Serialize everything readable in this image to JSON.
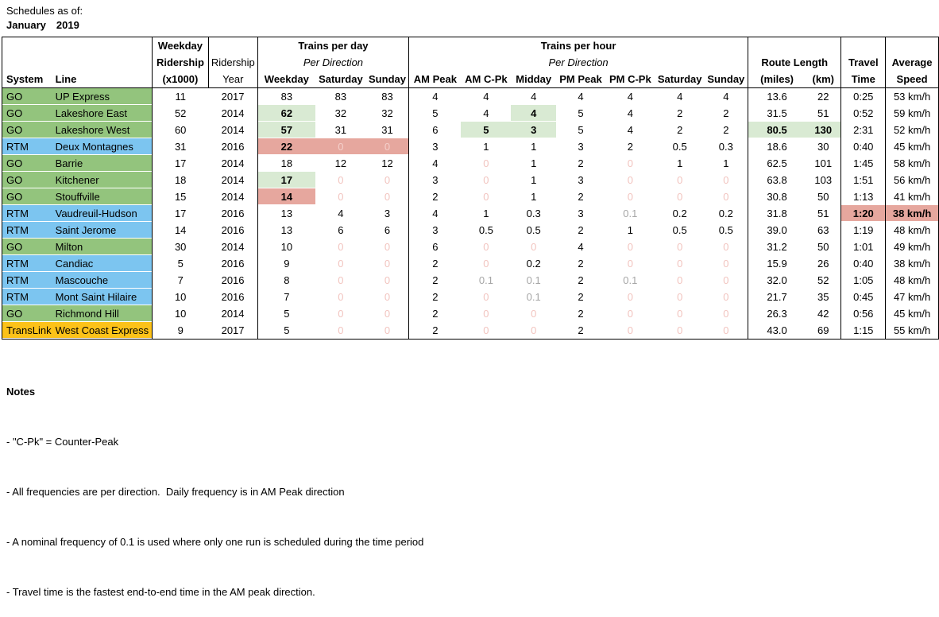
{
  "title": "Schedules as of:",
  "date": {
    "month": "January",
    "year": "2019"
  },
  "colors": {
    "go_green": "#93c47d",
    "rtm_blue": "#7cc5f0",
    "translink_yellow": "#fcc219",
    "highlight_green": "#d9ead3",
    "highlight_red": "#e6a79e",
    "zero_pink": "#f2c4bf",
    "zero_on_red": "#f4cfca",
    "nominal_gray": "#a6a6a6"
  },
  "table": {
    "head": {
      "weekday_ridership_l1": "Weekday",
      "weekday_ridership_l2": "Ridership",
      "ridership_year_l1": "Ridership",
      "trains_per_day": "Trains per day",
      "trains_per_hour": "Trains per hour",
      "per_direction": "Per Direction",
      "route_length": "Route Length",
      "travel": "Travel",
      "average": "Average"
    },
    "columns": [
      "System",
      "Line",
      "(x1000)",
      "Year",
      "Weekday",
      "Saturday",
      "Sunday",
      "AM Peak",
      "AM C-Pk",
      "Midday",
      "PM Peak",
      "PM C-Pk",
      "Saturday",
      "Sunday",
      "(miles)",
      "(km)",
      "Time",
      "Speed"
    ],
    "rows": [
      {
        "system": "GO",
        "line": "UP Express",
        "agency": "go",
        "cells": [
          "11",
          "2017",
          "83",
          "83",
          "83",
          "4",
          "4",
          "4",
          "4",
          "4",
          "4",
          "4",
          "13.6",
          "22",
          "0:25",
          "53 km/h"
        ]
      },
      {
        "system": "GO",
        "line": "Lakeshore East",
        "agency": "go",
        "cells": [
          "52",
          "2014",
          {
            "v": "62",
            "c": "b hl-g"
          },
          "32",
          "32",
          "5",
          "4",
          {
            "v": "4",
            "c": "b hl-g"
          },
          "5",
          "4",
          "2",
          "2",
          "31.5",
          "51",
          "0:52",
          "59 km/h"
        ]
      },
      {
        "system": "GO",
        "line": "Lakeshore West",
        "agency": "go",
        "cells": [
          "60",
          "2014",
          {
            "v": "57",
            "c": "b hl-g"
          },
          "31",
          "31",
          "6",
          {
            "v": "5",
            "c": "b hl-g"
          },
          {
            "v": "3",
            "c": "b hl-g"
          },
          "5",
          "4",
          "2",
          "2",
          {
            "v": "80.5",
            "c": "b hl-g"
          },
          {
            "v": "130",
            "c": "b hl-g"
          },
          "2:31",
          "52 km/h"
        ]
      },
      {
        "system": "RTM",
        "line": "Deux Montagnes",
        "agency": "rtm",
        "cells": [
          "31",
          "2016",
          {
            "v": "22",
            "c": "b hl-r"
          },
          {
            "v": "0",
            "c": "zr hl-r"
          },
          {
            "v": "0",
            "c": "zr hl-r"
          },
          "3",
          "1",
          "1",
          "3",
          "2",
          "0.5",
          "0.3",
          "18.6",
          "30",
          "0:40",
          "45 km/h"
        ]
      },
      {
        "system": "GO",
        "line": "Barrie",
        "agency": "go",
        "cells": [
          "17",
          "2014",
          "18",
          "12",
          "12",
          "4",
          {
            "v": "0",
            "c": "z"
          },
          "1",
          "2",
          {
            "v": "0",
            "c": "z"
          },
          "1",
          "1",
          "62.5",
          "101",
          "1:45",
          "58 km/h"
        ]
      },
      {
        "system": "GO",
        "line": "Kitchener",
        "agency": "go",
        "cells": [
          "18",
          "2014",
          {
            "v": "17",
            "c": "b hl-g"
          },
          {
            "v": "0",
            "c": "z"
          },
          {
            "v": "0",
            "c": "z"
          },
          "3",
          {
            "v": "0",
            "c": "z"
          },
          "1",
          "3",
          {
            "v": "0",
            "c": "z"
          },
          {
            "v": "0",
            "c": "z"
          },
          {
            "v": "0",
            "c": "z"
          },
          "63.8",
          "103",
          "1:51",
          "56 km/h"
        ]
      },
      {
        "system": "GO",
        "line": "Stouffville",
        "agency": "go",
        "cells": [
          "15",
          "2014",
          {
            "v": "14",
            "c": "b hl-r"
          },
          {
            "v": "0",
            "c": "z"
          },
          {
            "v": "0",
            "c": "z"
          },
          "2",
          {
            "v": "0",
            "c": "z"
          },
          "1",
          "2",
          {
            "v": "0",
            "c": "z"
          },
          {
            "v": "0",
            "c": "z"
          },
          {
            "v": "0",
            "c": "z"
          },
          "30.8",
          "50",
          "1:13",
          "41 km/h"
        ]
      },
      {
        "system": "RTM",
        "line": "Vaudreuil-Hudson",
        "agency": "rtm",
        "cells": [
          "17",
          "2016",
          "13",
          "4",
          "3",
          "4",
          "1",
          "0.3",
          "3",
          {
            "v": "0.1",
            "c": "gy"
          },
          "0.2",
          "0.2",
          "31.8",
          "51",
          {
            "v": "1:20",
            "c": "b hl-r"
          },
          {
            "v": "38 km/h",
            "c": "b hl-r"
          }
        ]
      },
      {
        "system": "RTM",
        "line": "Saint Jerome",
        "agency": "rtm",
        "cells": [
          "14",
          "2016",
          "13",
          "6",
          "6",
          "3",
          "0.5",
          "0.5",
          "2",
          "1",
          "0.5",
          "0.5",
          "39.0",
          "63",
          "1:19",
          "48 km/h"
        ]
      },
      {
        "system": "GO",
        "line": "Milton",
        "agency": "go",
        "cells": [
          "30",
          "2014",
          "10",
          {
            "v": "0",
            "c": "z"
          },
          {
            "v": "0",
            "c": "z"
          },
          "6",
          {
            "v": "0",
            "c": "z"
          },
          {
            "v": "0",
            "c": "z"
          },
          "4",
          {
            "v": "0",
            "c": "z"
          },
          {
            "v": "0",
            "c": "z"
          },
          {
            "v": "0",
            "c": "z"
          },
          "31.2",
          "50",
          "1:01",
          "49 km/h"
        ]
      },
      {
        "system": "RTM",
        "line": "Candiac",
        "agency": "rtm",
        "cells": [
          "5",
          "2016",
          "9",
          {
            "v": "0",
            "c": "z"
          },
          {
            "v": "0",
            "c": "z"
          },
          "2",
          {
            "v": "0",
            "c": "z"
          },
          "0.2",
          "2",
          {
            "v": "0",
            "c": "z"
          },
          {
            "v": "0",
            "c": "z"
          },
          {
            "v": "0",
            "c": "z"
          },
          "15.9",
          "26",
          "0:40",
          "38 km/h"
        ]
      },
      {
        "system": "RTM",
        "line": "Mascouche",
        "agency": "rtm",
        "cells": [
          "7",
          "2016",
          "8",
          {
            "v": "0",
            "c": "z"
          },
          {
            "v": "0",
            "c": "z"
          },
          "2",
          {
            "v": "0.1",
            "c": "gy"
          },
          {
            "v": "0.1",
            "c": "gy"
          },
          "2",
          {
            "v": "0.1",
            "c": "gy"
          },
          {
            "v": "0",
            "c": "z"
          },
          {
            "v": "0",
            "c": "z"
          },
          "32.0",
          "52",
          "1:05",
          "48 km/h"
        ]
      },
      {
        "system": "RTM",
        "line": "Mont Saint Hilaire",
        "agency": "rtm",
        "cells": [
          "10",
          "2016",
          "7",
          {
            "v": "0",
            "c": "z"
          },
          {
            "v": "0",
            "c": "z"
          },
          "2",
          {
            "v": "0",
            "c": "z"
          },
          {
            "v": "0.1",
            "c": "gy"
          },
          "2",
          {
            "v": "0",
            "c": "z"
          },
          {
            "v": "0",
            "c": "z"
          },
          {
            "v": "0",
            "c": "z"
          },
          "21.7",
          "35",
          "0:45",
          "47 km/h"
        ]
      },
      {
        "system": "GO",
        "line": "Richmond Hill",
        "agency": "go",
        "cells": [
          "10",
          "2014",
          "5",
          {
            "v": "0",
            "c": "z"
          },
          {
            "v": "0",
            "c": "z"
          },
          "2",
          {
            "v": "0",
            "c": "z"
          },
          {
            "v": "0",
            "c": "z"
          },
          "2",
          {
            "v": "0",
            "c": "z"
          },
          {
            "v": "0",
            "c": "z"
          },
          {
            "v": "0",
            "c": "z"
          },
          "26.3",
          "42",
          "0:56",
          "45 km/h"
        ]
      },
      {
        "system": "TransLink",
        "line": "West Coast Express",
        "agency": "translink",
        "cells": [
          "9",
          "2017",
          "5",
          {
            "v": "0",
            "c": "z"
          },
          {
            "v": "0",
            "c": "z"
          },
          "2",
          {
            "v": "0",
            "c": "z"
          },
          {
            "v": "0",
            "c": "z"
          },
          "2",
          {
            "v": "0",
            "c": "z"
          },
          {
            "v": "0",
            "c": "z"
          },
          {
            "v": "0",
            "c": "z"
          },
          "43.0",
          "69",
          "1:15",
          "55 km/h"
        ]
      }
    ]
  },
  "notes": {
    "heading": "Notes",
    "items": [
      "- \"C-Pk\" = Counter-Peak",
      "- All frequencies are per direction.  Daily frequency is in AM Peak direction",
      "- A nominal frequency of 0.1 is used where only one run is scheduled during the time period",
      "- Travel time is the fastest end-to-end time in the AM peak direction."
    ]
  }
}
